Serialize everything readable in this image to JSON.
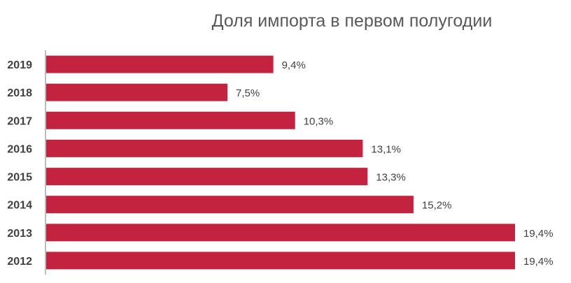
{
  "chart_data": {
    "type": "bar",
    "orientation": "horizontal",
    "title": "Доля импорта в первом полугодии",
    "categories": [
      "2019",
      "2018",
      "2017",
      "2016",
      "2015",
      "2014",
      "2013",
      "2012"
    ],
    "values": [
      9.4,
      7.5,
      10.3,
      13.1,
      13.3,
      15.2,
      19.4,
      19.4
    ],
    "value_labels": [
      "9,4%",
      "7,5%",
      "10,3%",
      "13,1%",
      "13,3%",
      "15,2%",
      "19,4%",
      "19,4%"
    ],
    "xlabel": "",
    "ylabel": "",
    "xlim": [
      0,
      19.4
    ],
    "grid": false,
    "legend": "none",
    "bar_color": "#C4233F",
    "axis_color": "#A6A6A6"
  }
}
